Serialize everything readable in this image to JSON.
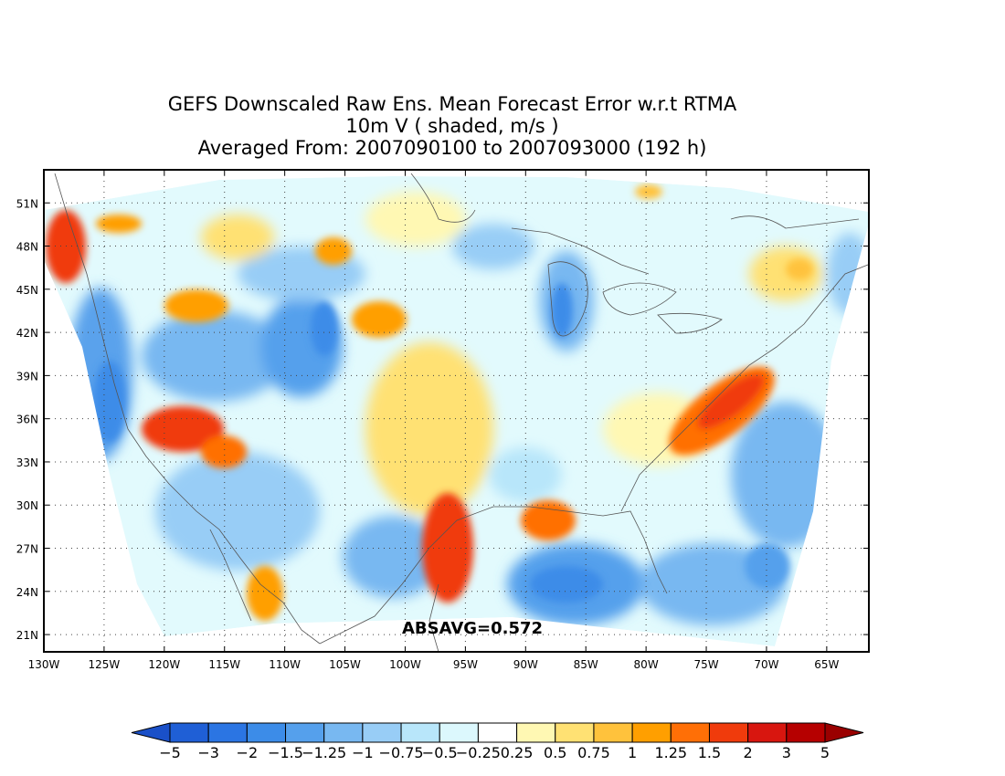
{
  "title": {
    "line1": "GEFS Downscaled Raw Ens. Mean Forecast Error w.r.t RTMA",
    "line2": "10m V ( shaded, m/s )",
    "line3": "Averaged From: 2007090100 to 2007093000 (192 h)"
  },
  "annotation": "ABSAVG=0.572",
  "map": {
    "lat_labels": [
      "51N",
      "48N",
      "45N",
      "42N",
      "39N",
      "36N",
      "33N",
      "30N",
      "27N",
      "24N",
      "21N"
    ],
    "lat_values": [
      51,
      48,
      45,
      42,
      39,
      36,
      33,
      30,
      27,
      24,
      21
    ],
    "lon_labels": [
      "130W",
      "125W",
      "120W",
      "115W",
      "110W",
      "105W",
      "100W",
      "95W",
      "90W",
      "85W",
      "80W",
      "75W",
      "70W",
      "65W"
    ],
    "lon_values": [
      -130,
      -125,
      -120,
      -115,
      -110,
      -105,
      -100,
      -95,
      -90,
      -85,
      -80,
      -75,
      -70,
      -65
    ],
    "lon_range": [
      -130,
      -61.5
    ],
    "lat_range": [
      19.8,
      53.3
    ],
    "grid": true,
    "projection_note": "shaded field with dotted lat/lon grid and coastlines"
  },
  "colorbar": {
    "labels": [
      "−5",
      "−3",
      "−2",
      "−1.5",
      "−1.25",
      "−1",
      "−0.75",
      "−0.5",
      "−0.25",
      "0.25",
      "0.5",
      "0.75",
      "1",
      "1.25",
      "1.5",
      "2",
      "3",
      "5"
    ],
    "colors": [
      "#1f5fd6",
      "#2b75e3",
      "#3c8ce8",
      "#55a0ec",
      "#78b8f1",
      "#98cdf6",
      "#b8e6fa",
      "#dcf8fd",
      "#ffffff",
      "#fff8b3",
      "#ffe173",
      "#ffc23c",
      "#ff9f00",
      "#ff6f06",
      "#f03b0c",
      "#d8160f",
      "#b60000"
    ],
    "low_extend_color": "#1a50c8",
    "high_extend_color": "#9a0000"
  }
}
